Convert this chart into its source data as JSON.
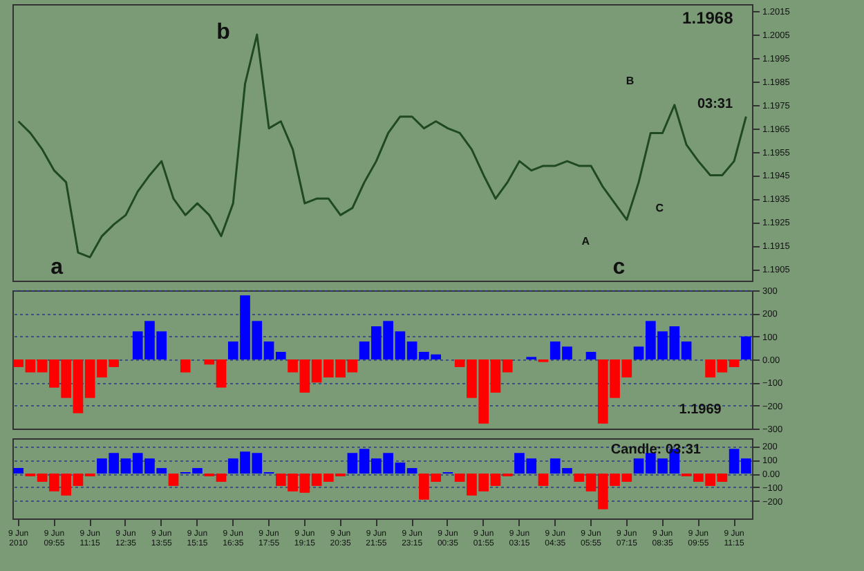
{
  "chart_data": [
    {
      "type": "line",
      "series": [
        {
          "color": "#1f4a1f",
          "values": [
            1.1968,
            1.1963,
            1.1956,
            1.1947,
            1.1942,
            1.1912,
            1.191,
            1.1919,
            1.1924,
            1.1928,
            1.1938,
            1.1945,
            1.1951,
            1.1935,
            1.1928,
            1.1933,
            1.1928,
            1.1919,
            1.1933,
            1.1984,
            1.2005,
            1.1965,
            1.1968,
            1.1956,
            1.1933,
            1.1935,
            1.1935,
            1.1928,
            1.1931,
            1.1942,
            1.1951,
            1.1963,
            1.197,
            1.197,
            1.1965,
            1.1968,
            1.1965,
            1.1963,
            1.1956,
            1.1945,
            1.1935,
            1.1942,
            1.1951,
            1.1947,
            1.1949,
            1.1949,
            1.1951,
            1.1949,
            1.1949,
            1.194,
            1.1933,
            1.1926,
            1.1942,
            1.1963,
            1.1963,
            1.1975,
            1.1958,
            1.1951,
            1.1945,
            1.1945,
            1.1951,
            1.197
          ]
        }
      ],
      "ylim": [
        1.19,
        1.2018
      ],
      "yticks": [
        1.1905,
        1.1915,
        1.1925,
        1.1935,
        1.1945,
        1.1955,
        1.1965,
        1.1975,
        1.1985,
        1.1995,
        1.2005,
        1.2015
      ],
      "tick_labels": "y",
      "annotations": [
        "a",
        "b",
        "c",
        "A",
        "B",
        "C",
        "1.1968",
        "03:31"
      ]
    },
    {
      "type": "bar",
      "values": [
        -33,
        -56,
        -56,
        -122,
        -167,
        -233,
        -167,
        -78,
        -33,
        0,
        122,
        167,
        122,
        0,
        -56,
        0,
        -22,
        -122,
        78,
        278,
        167,
        78,
        33,
        -56,
        -144,
        -100,
        -78,
        -78,
        -56,
        78,
        144,
        167,
        122,
        78,
        33,
        22,
        0,
        -33,
        -167,
        -278,
        -144,
        -56,
        0,
        11,
        -11,
        78,
        56,
        0,
        33,
        -278,
        -167,
        -78,
        56,
        167,
        122,
        144,
        78,
        0,
        -78,
        -56,
        -33,
        100
      ],
      "colors": [
        "#ff0000",
        "#ff0000",
        "#ff0000",
        "#ff0000",
        "#ff0000",
        "#ff0000",
        "#ff0000",
        "#ff0000",
        "#ff0000",
        "#000000",
        "#0000ff",
        "#0000ff",
        "#0000ff",
        "#000000",
        "#ff0000",
        "#000000",
        "#ff0000",
        "#ff0000",
        "#0000ff",
        "#0000ff",
        "#0000ff",
        "#0000ff",
        "#0000ff",
        "#ff0000",
        "#ff0000",
        "#ff0000",
        "#ff0000",
        "#ff0000",
        "#ff0000",
        "#0000ff",
        "#0000ff",
        "#0000ff",
        "#0000ff",
        "#0000ff",
        "#0000ff",
        "#0000ff",
        "#000000",
        "#ff0000",
        "#ff0000",
        "#ff0000",
        "#ff0000",
        "#ff0000",
        "#000000",
        "#0000ff",
        "#ff0000",
        "#0000ff",
        "#0000ff",
        "#000000",
        "#0000ff",
        "#ff0000",
        "#ff0000",
        "#ff0000",
        "#0000ff",
        "#0000ff",
        "#0000ff",
        "#0000ff",
        "#0000ff",
        "#000000",
        "#ff0000",
        "#ff0000",
        "#ff0000",
        "#0000ff"
      ],
      "ylim": [
        -300,
        300
      ],
      "yticks": [
        -300,
        -200,
        -100,
        {
          "value": 0,
          "label": "0.00"
        },
        100,
        200,
        300
      ],
      "grid": "y",
      "tick_labels": "y",
      "annotations": [
        "1.1969"
      ]
    },
    {
      "type": "bar",
      "categories": [
        "9 Jun 2010",
        null,
        null,
        "9 Jun 09:55",
        null,
        null,
        "9 Jun 11:15",
        null,
        null,
        "9 Jun 12:35",
        null,
        null,
        "9 Jun 13:55",
        null,
        null,
        "9 Jun 15:15",
        null,
        null,
        "9 Jun 16:35",
        null,
        null,
        "9 Jun 17:55",
        null,
        null,
        "9 Jun 19:15",
        null,
        null,
        "9 Jun 20:35",
        null,
        null,
        "9 Jun 21:55",
        null,
        null,
        "9 Jun 23:15",
        null,
        null,
        "9 Jun 00:35",
        null,
        null,
        "9 Jun 01:55",
        null,
        null,
        "9 Jun 03:15",
        null,
        null,
        "9 Jun 04:35",
        null,
        null,
        "9 Jun 05:55",
        null,
        null,
        "9 Jun 07:15",
        null,
        null,
        "9 Jun 08:35",
        null,
        null,
        "9 Jun 09:55",
        null,
        null,
        "9 Jun 11:15",
        null
      ],
      "values": [
        40,
        -20,
        -60,
        -130,
        -160,
        -90,
        -20,
        110,
        150,
        110,
        150,
        110,
        40,
        -90,
        10,
        40,
        -20,
        -60,
        110,
        160,
        150,
        10,
        -90,
        -130,
        -140,
        -90,
        -60,
        -20,
        150,
        180,
        110,
        150,
        80,
        40,
        -190,
        -60,
        10,
        -60,
        -160,
        -130,
        -90,
        -20,
        150,
        110,
        -90,
        110,
        40,
        -60,
        -130,
        -260,
        -90,
        -60,
        110,
        150,
        110,
        180,
        -20,
        -60,
        -90,
        -60,
        180,
        110
      ],
      "colors": [
        "#0000ff",
        "#ff0000",
        "#ff0000",
        "#ff0000",
        "#ff0000",
        "#ff0000",
        "#ff0000",
        "#0000ff",
        "#0000ff",
        "#0000ff",
        "#0000ff",
        "#0000ff",
        "#0000ff",
        "#ff0000",
        "#0000ff",
        "#0000ff",
        "#ff0000",
        "#ff0000",
        "#0000ff",
        "#0000ff",
        "#0000ff",
        "#0000ff",
        "#ff0000",
        "#ff0000",
        "#ff0000",
        "#ff0000",
        "#ff0000",
        "#ff0000",
        "#0000ff",
        "#0000ff",
        "#0000ff",
        "#0000ff",
        "#0000ff",
        "#0000ff",
        "#ff0000",
        "#ff0000",
        "#0000ff",
        "#ff0000",
        "#ff0000",
        "#ff0000",
        "#ff0000",
        "#ff0000",
        "#0000ff",
        "#0000ff",
        "#ff0000",
        "#0000ff",
        "#0000ff",
        "#ff0000",
        "#ff0000",
        "#ff0000",
        "#ff0000",
        "#ff0000",
        "#0000ff",
        "#0000ff",
        "#0000ff",
        "#0000ff",
        "#ff0000",
        "#ff0000",
        "#ff0000",
        "#ff0000",
        "#0000ff",
        "#0000ff"
      ],
      "ylim": [
        -327,
        257
      ],
      "yticks": [
        -200,
        -100,
        {
          "value": 0,
          "label": "0.00"
        },
        100,
        200
      ],
      "grid": "y",
      "annotations": [
        "Candle: 03:31"
      ]
    }
  ]
}
